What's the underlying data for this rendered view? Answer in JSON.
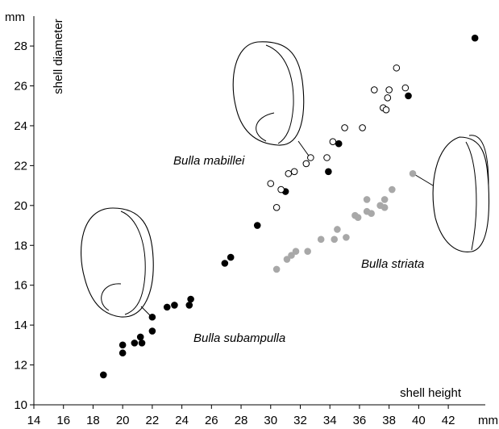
{
  "chart_data": {
    "type": "scatter",
    "x_label": "shell height",
    "y_label": "shell diameter",
    "x_unit": "mm",
    "y_unit": "mm",
    "xlim": [
      14,
      44.5
    ],
    "ylim": [
      10,
      29.5
    ],
    "xticks": [
      14,
      16,
      18,
      20,
      22,
      24,
      26,
      28,
      30,
      32,
      34,
      36,
      38,
      40,
      42
    ],
    "yticks": [
      10,
      12,
      14,
      16,
      18,
      20,
      22,
      24,
      26,
      28
    ],
    "series": [
      {
        "name": "Bulla subampulla",
        "color": "#000000",
        "fill": "#000000",
        "x": [
          18.7,
          20.0,
          20.0,
          20.8,
          21.2,
          21.3,
          22.0,
          22.0,
          23.0,
          23.5,
          24.5,
          24.6,
          26.9,
          27.3,
          29.1,
          31.0,
          34.6,
          33.9,
          39.3,
          43.8
        ],
        "values": [
          11.5,
          13.0,
          12.6,
          13.1,
          13.4,
          13.1,
          13.7,
          14.4,
          14.9,
          15.0,
          15.0,
          15.3,
          17.1,
          17.4,
          19.0,
          20.7,
          23.1,
          21.7,
          25.5,
          28.4
        ]
      },
      {
        "name": "Bulla mabillei",
        "color": "#000000",
        "fill": "#ffffff",
        "x": [
          30.0,
          30.7,
          30.4,
          31.2,
          31.6,
          32.4,
          32.7,
          33.8,
          34.2,
          35.0,
          36.2,
          37.0,
          38.0,
          37.9,
          37.6,
          37.8,
          38.5,
          39.1
        ],
        "values": [
          21.1,
          20.8,
          19.9,
          21.6,
          21.7,
          22.1,
          22.4,
          22.4,
          23.2,
          23.9,
          23.9,
          25.8,
          25.8,
          25.4,
          24.9,
          24.8,
          26.9,
          25.9
        ]
      },
      {
        "name": "Bulla striata",
        "color": "#a8a8a8",
        "fill": "#a8a8a8",
        "x": [
          30.4,
          31.1,
          31.4,
          31.7,
          32.5,
          33.4,
          34.3,
          34.5,
          35.1,
          35.7,
          35.9,
          36.5,
          36.5,
          36.8,
          37.4,
          37.7,
          37.7,
          38.2,
          39.6
        ],
        "values": [
          16.8,
          17.3,
          17.5,
          17.7,
          17.7,
          18.3,
          18.3,
          18.8,
          18.4,
          19.5,
          19.4,
          20.3,
          19.7,
          19.6,
          20.0,
          20.3,
          19.9,
          20.8,
          21.6
        ]
      }
    ]
  }
}
